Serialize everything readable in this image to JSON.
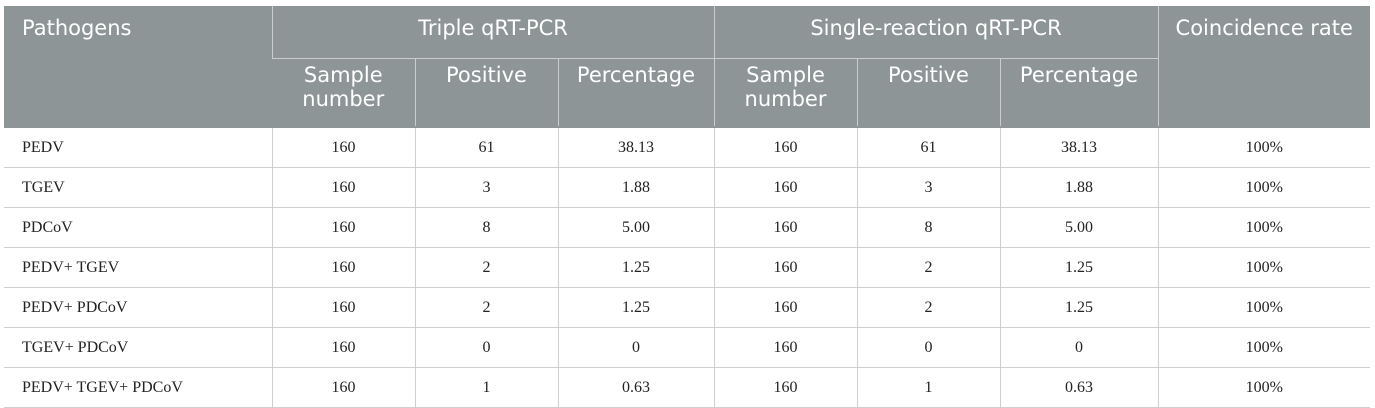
{
  "headers": {
    "pathogens": "Pathogens",
    "triple": "Triple qRT-PCR",
    "single": "Single-reaction qRT-PCR",
    "coincidence": "Coincidence rate",
    "sample_number": "Sample number",
    "positive": "Positive",
    "percentage": "Percentage"
  },
  "rows": [
    [
      "PEDV",
      "160",
      "61",
      "38.13",
      "160",
      "61",
      "38.13",
      "100%"
    ],
    [
      "TGEV",
      "160",
      "3",
      "1.88",
      "160",
      "3",
      "1.88",
      "100%"
    ],
    [
      "PDCoV",
      "160",
      "8",
      "5.00",
      "160",
      "8",
      "5.00",
      "100%"
    ],
    [
      "PEDV+ TGEV",
      "160",
      "2",
      "1.25",
      "160",
      "2",
      "1.25",
      "100%"
    ],
    [
      "PEDV+ PDCoV",
      "160",
      "2",
      "1.25",
      "160",
      "2",
      "1.25",
      "100%"
    ],
    [
      "TGEV+ PDCoV",
      "160",
      "0",
      "0",
      "160",
      "0",
      "0",
      "100%"
    ],
    [
      "PEDV+ TGEV+ PDCoV",
      "160",
      "1",
      "0.63",
      "160",
      "1",
      "0.63",
      "100%"
    ]
  ]
}
